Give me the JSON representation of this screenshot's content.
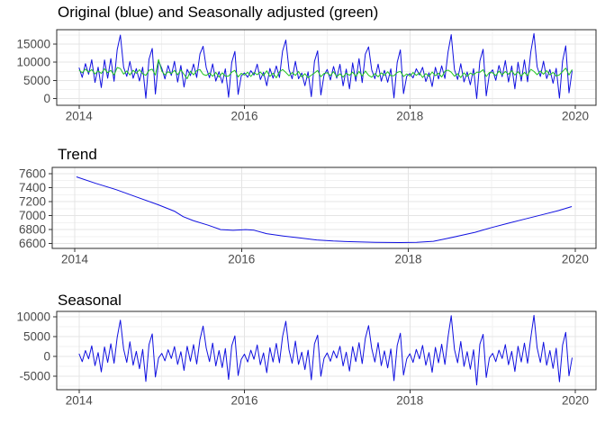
{
  "colors": {
    "original_blue": "#1010E0",
    "adjusted_green": "#21C421",
    "grid_major": "#E4E4E4",
    "grid_minor": "#F2F2F2",
    "panel_border": "#2B2B2B",
    "axis_tick_mark": "#333333",
    "axis_text": "#4A4A4A",
    "background": "#FFFFFF"
  },
  "chart_data": {
    "type": "line",
    "description": "Three stacked time-series decomposition panels: original vs seasonally adjusted series, trend component, seasonal component",
    "x_domain": [
      2013.73,
      2020.25
    ],
    "x_major_ticks": [
      2014,
      2016,
      2018,
      2020
    ],
    "x_minor_ticks": [
      2015,
      2017,
      2019
    ],
    "series_x": {
      "start": 2014.0,
      "step_years": 0.0384615
    },
    "panels": [
      {
        "id": "original",
        "title": "Original (blue) and Seasonally adjusted (green)",
        "ylim": [
          -1800,
          18950
        ],
        "yticks": [
          0,
          5000,
          10000,
          15000
        ],
        "yminor": [
          2500,
          7500,
          12500,
          17500
        ],
        "series": [
          {
            "name": "Original",
            "color_key": "original_blue",
            "compose": [
              "trend",
              "seasonal",
              "remainder"
            ]
          },
          {
            "name": "Seasonally adjusted",
            "color_key": "adjusted_green",
            "compose": [
              "trend",
              "remainder"
            ]
          }
        ]
      },
      {
        "id": "trend",
        "title": "Trend",
        "ylim": [
          6530,
          7690
        ],
        "yticks": [
          6600,
          6800,
          7000,
          7200,
          7400,
          7600
        ],
        "yminor": [
          6700,
          6900,
          7100,
          7300,
          7500
        ],
        "series": [
          {
            "name": "Trend",
            "color_key": "original_blue",
            "points_key": "trend_points"
          }
        ]
      },
      {
        "id": "seasonal",
        "title": "Seasonal",
        "ylim": [
          -8400,
          11400
        ],
        "yticks": [
          -5000,
          0,
          5000,
          10000
        ],
        "yminor": [
          -7500,
          -2500,
          2500,
          7500
        ],
        "series": [
          {
            "name": "Seasonal",
            "color_key": "original_blue",
            "compose": [
              "seasonal"
            ]
          }
        ]
      }
    ],
    "components": {
      "trend_points": [
        [
          2014.02,
          7555
        ],
        [
          2014.25,
          7462
        ],
        [
          2014.5,
          7370
        ],
        [
          2014.75,
          7262
        ],
        [
          2015.0,
          7155
        ],
        [
          2015.2,
          7060
        ],
        [
          2015.3,
          6985
        ],
        [
          2015.42,
          6928
        ],
        [
          2015.6,
          6862
        ],
        [
          2015.75,
          6800
        ],
        [
          2015.9,
          6789
        ],
        [
          2016.05,
          6799
        ],
        [
          2016.15,
          6791
        ],
        [
          2016.3,
          6741
        ],
        [
          2016.5,
          6708
        ],
        [
          2016.7,
          6679
        ],
        [
          2016.9,
          6651
        ],
        [
          2017.1,
          6636
        ],
        [
          2017.3,
          6627
        ],
        [
          2017.6,
          6617
        ],
        [
          2017.9,
          6614
        ],
        [
          2018.1,
          6618
        ],
        [
          2018.3,
          6632
        ],
        [
          2018.45,
          6668
        ],
        [
          2018.6,
          6706
        ],
        [
          2018.8,
          6761
        ],
        [
          2019.0,
          6829
        ],
        [
          2019.2,
          6891
        ],
        [
          2019.4,
          6952
        ],
        [
          2019.6,
          7011
        ],
        [
          2019.8,
          7071
        ],
        [
          2019.96,
          7129
        ]
      ],
      "seasonal": [
        700,
        -1300,
        1500,
        -600,
        2700,
        -2300,
        1000,
        -3900,
        2400,
        -1500,
        3200,
        -1700,
        4900,
        9200,
        1900,
        -1500,
        3700,
        -2200,
        1300,
        -3100,
        1800,
        -6300,
        3000,
        5700,
        -5200,
        -400,
        800,
        -1100,
        1700,
        -500,
        2500,
        -2000,
        1200,
        -3500,
        2600,
        -1200,
        3000,
        -1900,
        4300,
        7700,
        2100,
        -1300,
        3400,
        -2400,
        1500,
        -2800,
        2000,
        -5800,
        2700,
        5200,
        -4800,
        -700,
        600,
        -1400,
        1600,
        -700,
        2900,
        -2100,
        900,
        -4100,
        2200,
        -1400,
        3300,
        -1600,
        5100,
        8900,
        1700,
        -1700,
        3900,
        -2000,
        1100,
        -3300,
        1600,
        -5900,
        3200,
        5400,
        -5000,
        -500,
        900,
        -1200,
        1400,
        -400,
        2600,
        -2400,
        1100,
        -3700,
        2500,
        -1300,
        3500,
        -1800,
        4600,
        7800,
        2000,
        -1400,
        3500,
        -2300,
        1400,
        -2900,
        1900,
        -6100,
        2800,
        5900,
        -4700,
        -600,
        700,
        -1500,
        1800,
        -600,
        2800,
        -2200,
        1000,
        -4000,
        2300,
        -1600,
        3100,
        -2000,
        5000,
        10300,
        1800,
        -1600,
        3800,
        -2500,
        1200,
        -3200,
        1700,
        -7200,
        3100,
        5600,
        -5300,
        -400,
        800,
        -1300,
        1600,
        -500,
        3000,
        -2100,
        1300,
        -3800,
        2600,
        -1400,
        3400,
        -1700,
        4800,
        10400,
        2200,
        -1500,
        3600,
        -2200,
        1500,
        -3000,
        2100,
        -6400,
        2900,
        6100,
        -4900,
        -300
      ],
      "remainder": [
        300,
        -400,
        600,
        -200,
        500,
        -700,
        200,
        -500,
        800,
        -300,
        400,
        -900,
        1200,
        900,
        -600,
        300,
        -800,
        500,
        -300,
        700,
        -400,
        -800,
        600,
        900,
        -700,
        3600,
        400,
        -600,
        300,
        -200,
        700,
        -500,
        900,
        -300,
        -1500,
        600,
        -400,
        800,
        1100,
        -200,
        -500,
        200,
        -700,
        400,
        -900,
        300,
        -600,
        -600,
        500,
        1000,
        -800,
        200,
        -300,
        500,
        -700,
        400,
        -200,
        600,
        -400,
        900,
        -600,
        300,
        -1000,
        700,
        1300,
        500,
        -400,
        500,
        -300,
        800,
        -700,
        200,
        -900,
        -200,
        400,
        1100,
        -600,
        300,
        500,
        -300,
        800,
        -600,
        200,
        -700,
        400,
        -200,
        700,
        -500,
        900,
        -400,
        1000,
        -200,
        -700,
        300,
        -600,
        500,
        -200,
        800,
        -300,
        -300,
        600,
        900,
        -500,
        200,
        -400,
        600,
        -200,
        500,
        -800,
        300,
        -500,
        700,
        -300,
        400,
        -700,
        900,
        1200,
        600,
        -500,
        200,
        -900,
        400,
        -600,
        300,
        -200,
        500,
        500,
        1200,
        -700,
        400,
        300,
        -500,
        700,
        -300,
        600,
        -200,
        800,
        -400,
        500,
        -700,
        300,
        -600,
        1100,
        500,
        -400,
        600,
        -300,
        700,
        -500,
        200,
        -800,
        -500,
        400,
        1300,
        -600,
        900
      ]
    }
  }
}
